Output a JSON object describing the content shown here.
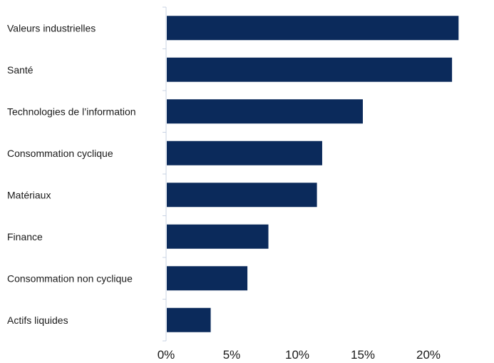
{
  "chart_data": {
    "type": "bar",
    "orientation": "horizontal",
    "categories": [
      "Valeurs industrielles",
      "Santé",
      "Technologies de l’information",
      "Consommation cyclique",
      "Matériaux",
      "Finance",
      "Consommation non cyclique",
      "Actifs liquides"
    ],
    "values": [
      22.3,
      21.8,
      15.0,
      11.9,
      11.5,
      7.8,
      6.2,
      3.4
    ],
    "xlim": [
      0,
      25
    ],
    "xticks": [
      0,
      5,
      10,
      15,
      20
    ],
    "xtick_labels": [
      "0%",
      "5%",
      "10%",
      "15%",
      "20%"
    ],
    "title": "",
    "xlabel": "",
    "ylabel": "",
    "grid": false,
    "legend": "none",
    "bar_color": "#0b2a5b",
    "axis_color": "#c9d3e3"
  }
}
